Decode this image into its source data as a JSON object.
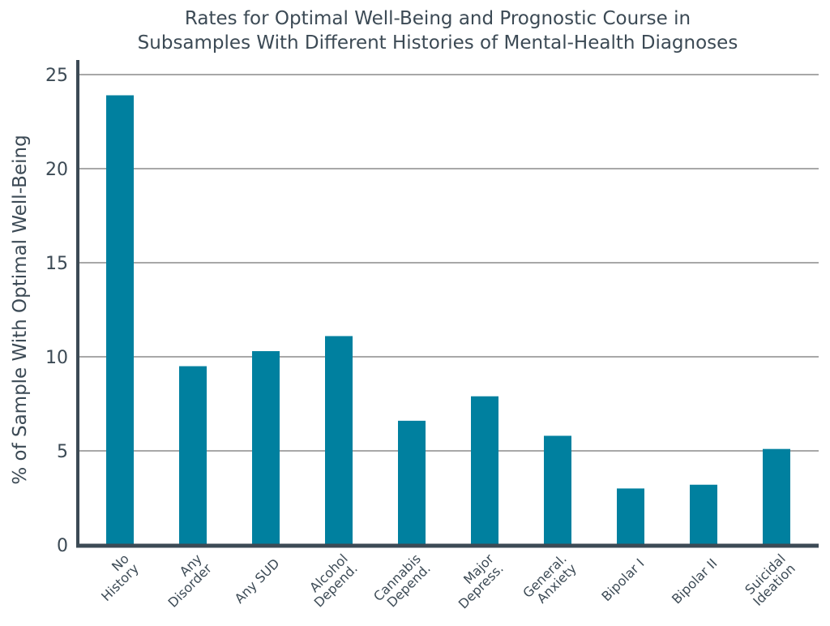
{
  "chart_data": {
    "type": "bar",
    "title": [
      "Rates for Optimal Well-Being and Prognostic Course in",
      "Subsamples With Different Histories of Mental-Health Diagnoses"
    ],
    "ylabel": "% of Sample With Optimal Well-Being",
    "xlabel": "",
    "ylim": [
      0,
      25
    ],
    "yticks": [
      0,
      5,
      10,
      15,
      20,
      25
    ],
    "grid": true,
    "bar_color": "#00809f",
    "categories": [
      [
        "No",
        "History"
      ],
      [
        "Any",
        "Disorder"
      ],
      [
        "Any SUD"
      ],
      [
        "Alcohol",
        "Depend."
      ],
      [
        "Cannabis",
        "Depend."
      ],
      [
        "Major",
        "Depress."
      ],
      [
        "General.",
        "Anxiety"
      ],
      [
        "Bipolar I"
      ],
      [
        "Bipolar II"
      ],
      [
        "Suicidal",
        "Ideation"
      ]
    ],
    "values": [
      23.9,
      9.5,
      10.3,
      11.1,
      6.6,
      7.9,
      5.8,
      3.0,
      3.2,
      5.1
    ]
  }
}
